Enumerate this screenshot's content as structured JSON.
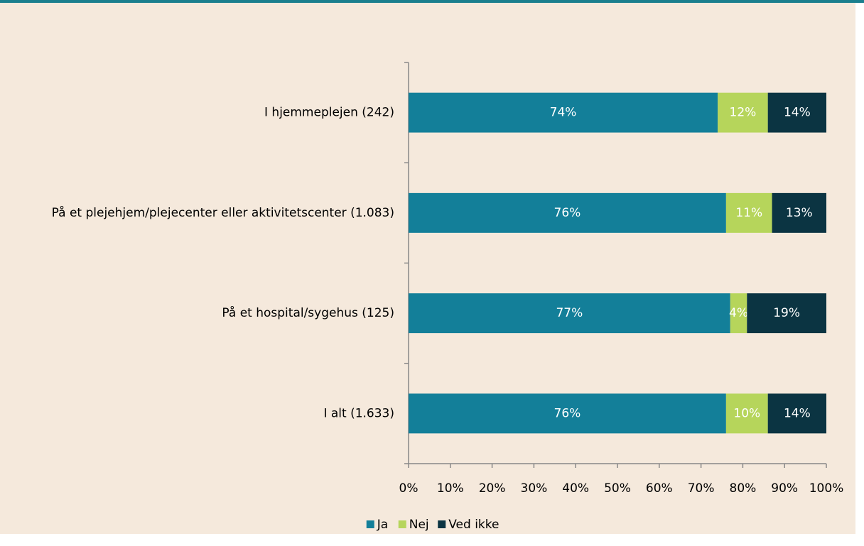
{
  "chart_data": {
    "type": "stacked-bar-horizontal",
    "categories": [
      "I hjemmeplejen (242)",
      "På et plejehjem/plejecenter eller aktivitetscenter (1.083)",
      "På et hospital/sygehus (125)",
      "I alt (1.633)"
    ],
    "series": [
      {
        "name": "Ja",
        "color": "#137f99",
        "values": [
          74,
          76,
          77,
          76
        ],
        "value_labels": [
          "74%",
          "76%",
          "77%",
          "76%"
        ]
      },
      {
        "name": "Nej",
        "color": "#b6d55b",
        "values": [
          12,
          11,
          4,
          10
        ],
        "value_labels": [
          "12%",
          "11%",
          "4%",
          "10%"
        ]
      },
      {
        "name": "Ved ikke",
        "color": "#0b3442",
        "values": [
          14,
          13,
          19,
          14
        ],
        "value_labels": [
          "14%",
          "13%",
          "19%",
          "14%"
        ]
      }
    ],
    "xlim": [
      0,
      100
    ],
    "xticks": [
      {
        "value": 0,
        "label": "0%"
      },
      {
        "value": 10,
        "label": "10%"
      },
      {
        "value": 20,
        "label": "20%"
      },
      {
        "value": 30,
        "label": "30%"
      },
      {
        "value": 40,
        "label": "40%"
      },
      {
        "value": 50,
        "label": "50%"
      },
      {
        "value": 60,
        "label": "60%"
      },
      {
        "value": 70,
        "label": "70%"
      },
      {
        "value": 80,
        "label": "80%"
      },
      {
        "value": 90,
        "label": "90%"
      },
      {
        "value": 100,
        "label": "100%"
      }
    ],
    "legend": "bottom"
  }
}
